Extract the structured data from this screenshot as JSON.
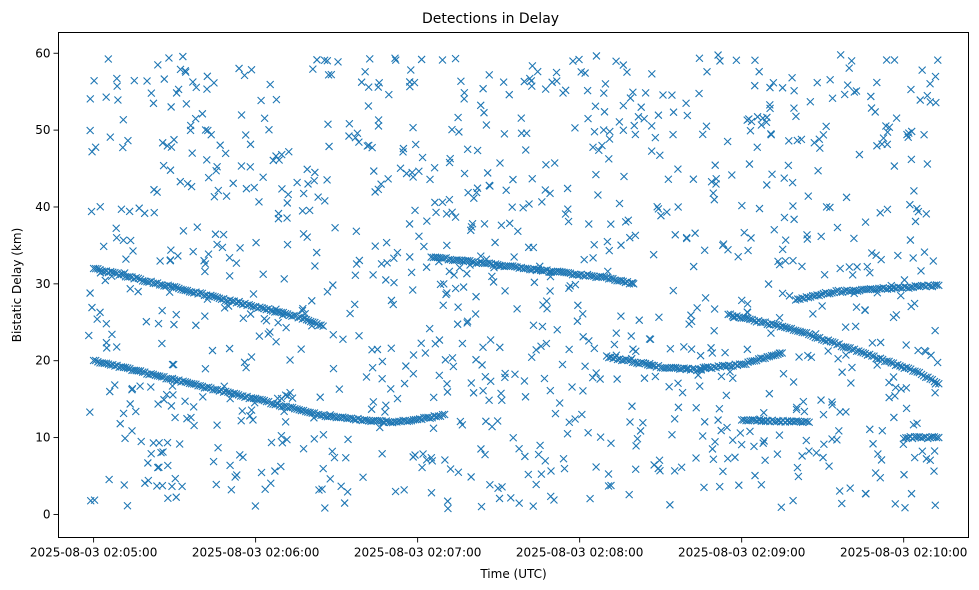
{
  "chart_data": {
    "type": "scatter",
    "title": "Detections in Delay",
    "xlabel": "Time (UTC)",
    "ylabel": "Bistatic Delay (km)",
    "marker": "x",
    "marker_color": "#1f77b4",
    "x_start": "2025-08-03 02:04:58",
    "x_end": "2025-08-03 02:10:13",
    "xlim": [
      "2025-08-03 02:04:47",
      "2025-08-03 02:10:24"
    ],
    "ylim": [
      -3,
      62.7
    ],
    "x_ticks": [
      "2025-08-03 02:05:00",
      "2025-08-03 02:06:00",
      "2025-08-03 02:07:00",
      "2025-08-03 02:08:00",
      "2025-08-03 02:09:00",
      "2025-08-03 02:10:00"
    ],
    "y_ticks": [
      0,
      10,
      20,
      30,
      40,
      50,
      60
    ],
    "grid": false,
    "tracks": [
      {
        "points": [
          [
            "2025-08-03 02:05:00",
            20.0
          ],
          [
            "2025-08-03 02:05:30",
            17.5
          ],
          [
            "2025-08-03 02:06:00",
            15.0
          ],
          [
            "2025-08-03 02:06:25",
            12.8
          ],
          [
            "2025-08-03 02:06:50",
            12.0
          ],
          [
            "2025-08-03 02:07:00",
            12.3
          ],
          [
            "2025-08-03 02:07:10",
            13.0
          ]
        ]
      },
      {
        "points": [
          [
            "2025-08-03 02:05:00",
            32.0
          ],
          [
            "2025-08-03 02:05:30",
            29.5
          ],
          [
            "2025-08-03 02:06:00",
            27.0
          ],
          [
            "2025-08-03 02:06:15",
            25.8
          ],
          [
            "2025-08-03 02:06:25",
            24.5
          ]
        ]
      },
      {
        "points": [
          [
            "2025-08-03 02:07:05",
            33.5
          ],
          [
            "2025-08-03 02:07:40",
            32.0
          ],
          [
            "2025-08-03 02:08:10",
            30.8
          ],
          [
            "2025-08-03 02:08:20",
            30.0
          ]
        ]
      },
      {
        "points": [
          [
            "2025-08-03 02:08:10",
            20.5
          ],
          [
            "2025-08-03 02:08:30",
            19.2
          ],
          [
            "2025-08-03 02:08:45",
            18.8
          ]
        ]
      },
      {
        "points": [
          [
            "2025-08-03 02:08:45",
            19.0
          ],
          [
            "2025-08-03 02:09:00",
            19.5
          ],
          [
            "2025-08-03 02:09:15",
            21.0
          ]
        ]
      },
      {
        "points": [
          [
            "2025-08-03 02:08:55",
            26.0
          ],
          [
            "2025-08-03 02:09:20",
            24.0
          ],
          [
            "2025-08-03 02:09:45",
            21.0
          ],
          [
            "2025-08-03 02:10:05",
            18.5
          ],
          [
            "2025-08-03 02:10:13",
            17.0
          ]
        ]
      },
      {
        "points": [
          [
            "2025-08-03 02:09:20",
            28.0
          ],
          [
            "2025-08-03 02:09:35",
            29.0
          ],
          [
            "2025-08-03 02:10:13",
            29.8
          ]
        ]
      },
      {
        "points": [
          [
            "2025-08-03 02:09:00",
            12.3
          ],
          [
            "2025-08-03 02:09:25",
            12.0
          ]
        ]
      },
      {
        "points": [
          [
            "2025-08-03 02:10:00",
            10.0
          ],
          [
            "2025-08-03 02:10:13",
            10.0
          ]
        ]
      }
    ],
    "clutter_y_range": [
      0.5,
      59.8
    ],
    "clutter_count": 1080
  }
}
